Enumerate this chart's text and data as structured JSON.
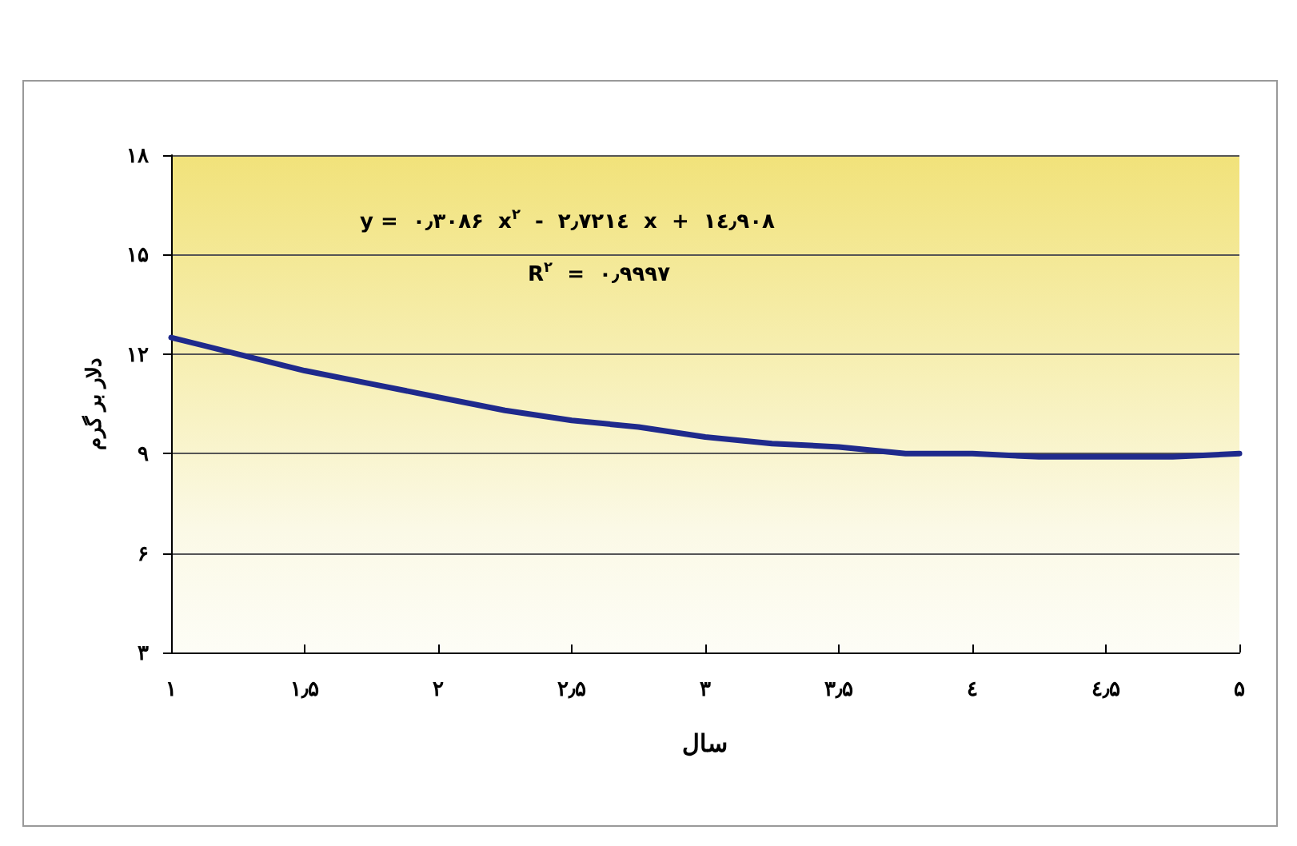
{
  "chart_data": {
    "type": "line",
    "xlabel": "سال",
    "ylabel": "دلار بر گرم",
    "x": [
      1,
      1.25,
      1.5,
      1.75,
      2,
      2.25,
      2.5,
      2.75,
      3,
      3.25,
      3.5,
      3.75,
      4,
      4.25,
      4.5,
      4.75,
      5
    ],
    "series": [
      {
        "color": "#1f2a8c",
        "values": [
          12.5,
          12.0,
          11.5,
          11.1,
          10.7,
          10.3,
          10.0,
          9.8,
          9.5,
          9.3,
          9.2,
          9.0,
          9.0,
          8.9,
          8.9,
          8.9,
          9.0
        ]
      }
    ],
    "xlim": [
      1,
      5
    ],
    "xticks": [
      {
        "value": 1,
        "label": "۱"
      },
      {
        "value": 1.5,
        "label": "۱٫۵"
      },
      {
        "value": 2,
        "label": "۲"
      },
      {
        "value": 2.5,
        "label": "۲٫۵"
      },
      {
        "value": 3,
        "label": "۳"
      },
      {
        "value": 3.5,
        "label": "۳٫۵"
      },
      {
        "value": 4,
        "label": "٤"
      },
      {
        "value": 4.5,
        "label": "٤٫۵"
      },
      {
        "value": 5,
        "label": "۵"
      }
    ],
    "ylim": [
      3,
      18
    ],
    "yticks": [
      {
        "value": 3,
        "label": "۳"
      },
      {
        "value": 6,
        "label": "۶"
      },
      {
        "value": 9,
        "label": "۹"
      },
      {
        "value": 12,
        "label": "۱۲"
      },
      {
        "value": 15,
        "label": "۱۵"
      },
      {
        "value": 18,
        "label": "۱۸"
      }
    ],
    "annotations": [
      "y =  ۰٫۳۰۸۶  x$^{۲}$  -  ۲٫۷۲۱٤  x  +  ۱٤٫۹۰۸",
      "R$^{۲}$  =  ۰٫۹۹۹۷"
    ],
    "grid": "y",
    "marker": "none",
    "line_style": "solid"
  }
}
